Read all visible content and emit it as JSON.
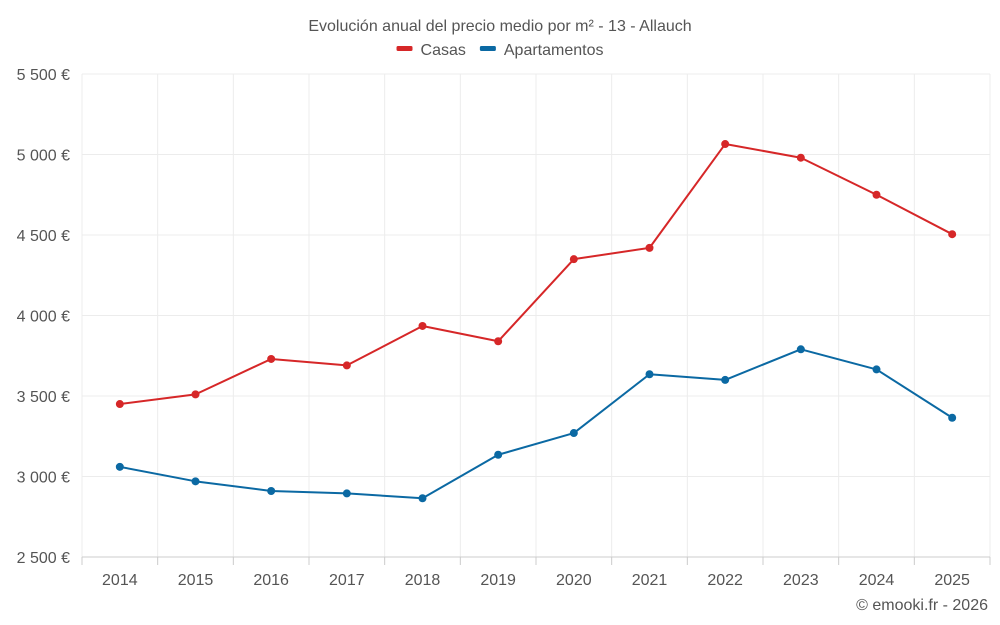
{
  "chart_data": {
    "type": "line",
    "title": "Evolución anual del precio medio por m² - 13 - Allauch",
    "categories": [
      "2014",
      "2015",
      "2016",
      "2017",
      "2018",
      "2019",
      "2020",
      "2021",
      "2022",
      "2023",
      "2024",
      "2025"
    ],
    "series": [
      {
        "name": "Casas",
        "color": "#d62728",
        "values": [
          3450,
          3510,
          3730,
          3690,
          3935,
          3840,
          4350,
          4420,
          5065,
          4980,
          4750,
          4505
        ]
      },
      {
        "name": "Apartamentos",
        "color": "#0b69a3",
        "values": [
          3060,
          2970,
          2910,
          2895,
          2865,
          3135,
          3270,
          3635,
          3600,
          3790,
          3665,
          3365
        ]
      }
    ],
    "ylim": [
      2500,
      5500
    ],
    "yticks": [
      2500,
      3000,
      3500,
      4000,
      4500,
      5000,
      5500
    ],
    "ytick_labels": [
      "2 500 €",
      "3 000 €",
      "3 500 €",
      "4 000 €",
      "4 500 €",
      "5 000 €",
      "5 500 €"
    ],
    "xlabel": "",
    "ylabel": "",
    "grid": true,
    "legend_position": "top-center"
  },
  "credit": "© emooki.fr - 2026"
}
